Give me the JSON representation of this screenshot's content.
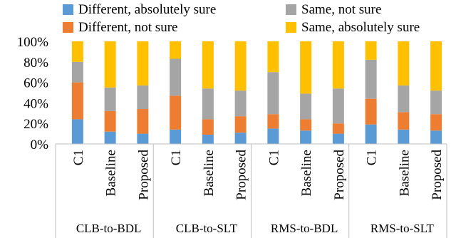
{
  "chart_data": {
    "type": "bar",
    "stacked": true,
    "percent": true,
    "legend_position": "top",
    "y_ticks": [
      "0%",
      "20%",
      "40%",
      "60%",
      "80%",
      "100%"
    ],
    "ylim": [
      0,
      100
    ],
    "groups": [
      {
        "label": "CLB-to-BDL",
        "categories": [
          "C1",
          "Baseline",
          "Proposed"
        ]
      },
      {
        "label": "CLB-to-SLT",
        "categories": [
          "C1",
          "Baseline",
          "Proposed"
        ]
      },
      {
        "label": "RMS-to-BDL",
        "categories": [
          "C1",
          "Baseline",
          "Proposed"
        ]
      },
      {
        "label": "RMS-to-SLT",
        "categories": [
          "C1",
          "Baseline",
          "Proposed"
        ]
      }
    ],
    "series": [
      {
        "name": "Different, absolutely sure",
        "color": "#5b9bd5",
        "values": [
          24,
          12,
          10,
          14,
          9,
          11,
          15,
          13,
          10,
          19,
          14,
          13
        ]
      },
      {
        "name": "Different, not sure",
        "color": "#ed7d31",
        "values": [
          36,
          20,
          24,
          33,
          15,
          16,
          14,
          11,
          10,
          25,
          17,
          16
        ]
      },
      {
        "name": "Same, not sure",
        "color": "#a5a5a5",
        "values": [
          20,
          23,
          23,
          36,
          30,
          25,
          41,
          25,
          34,
          38,
          26,
          23
        ]
      },
      {
        "name": "Same, absolutely sure",
        "color": "#ffc000",
        "values": [
          20,
          45,
          43,
          17,
          46,
          48,
          30,
          51,
          46,
          18,
          43,
          48
        ]
      }
    ]
  }
}
